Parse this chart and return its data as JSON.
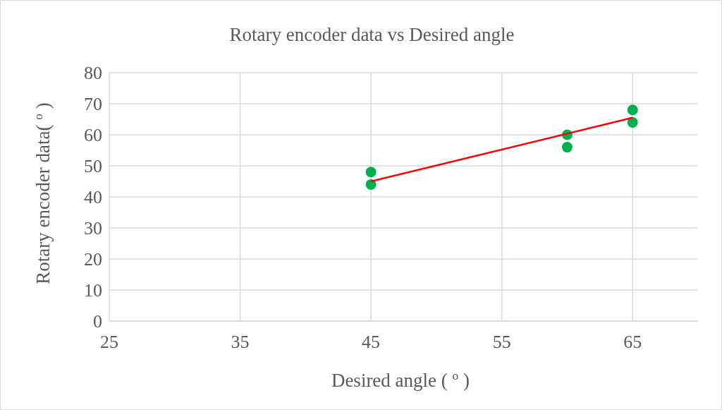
{
  "chart_data": {
    "type": "scatter",
    "title": "Rotary encoder data vs Desired angle",
    "xlabel": "Desired angle ( $^{o}$ )",
    "ylabel": "Rotary encoder data( $^{o}$ )",
    "xlim": [
      25,
      70
    ],
    "xticks": [
      25,
      35,
      45,
      55,
      65
    ],
    "ylim": [
      0,
      80
    ],
    "yticks": [
      0,
      10,
      20,
      30,
      40,
      50,
      60,
      70,
      80
    ],
    "grid": true,
    "marker": "circle",
    "series": [
      {
        "color": "#00b050",
        "x": [
          45,
          45,
          60,
          60,
          65,
          65
        ],
        "values": [
          48,
          44,
          60,
          56,
          68,
          64
        ]
      },
      {
        "type": "line",
        "color": "#ff0000",
        "x": [
          45,
          65
        ],
        "values": [
          45,
          65.5
        ],
        "marker": "none"
      }
    ]
  }
}
